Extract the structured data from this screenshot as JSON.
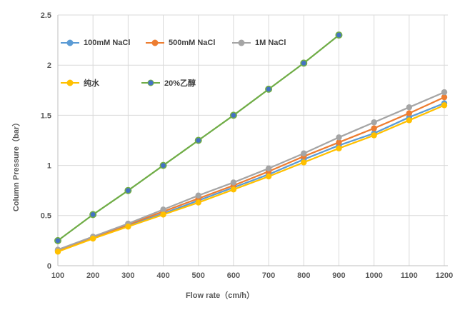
{
  "chart_data": {
    "type": "line",
    "title": "",
    "xlabel": "Flow rate（cm/h）",
    "ylabel": "Column Pressure（bar）",
    "xlim": [
      100,
      1200
    ],
    "ylim": [
      0,
      2.5
    ],
    "x_ticks": [
      100,
      200,
      300,
      400,
      500,
      600,
      700,
      800,
      900,
      1000,
      1100,
      1200
    ],
    "y_ticks": [
      0,
      0.5,
      1,
      1.5,
      2,
      2.5
    ],
    "y_tick_labels": [
      "0",
      "0.5",
      "1",
      "1.5",
      "2",
      "2.5"
    ],
    "grid": true,
    "legend_position": "inside-top-left",
    "x": [
      100,
      200,
      300,
      400,
      500,
      600,
      700,
      800,
      900,
      1000,
      1100,
      1200
    ],
    "series": [
      {
        "name": "100mM NaCl",
        "color": "#5B9BD5",
        "values": [
          0.15,
          0.28,
          0.4,
          0.52,
          0.65,
          0.78,
          0.91,
          1.06,
          1.2,
          1.32,
          1.48,
          1.62
        ]
      },
      {
        "name": "500mM NaCl",
        "color": "#ED7D31",
        "values": [
          0.15,
          0.28,
          0.41,
          0.54,
          0.67,
          0.8,
          0.94,
          1.09,
          1.23,
          1.37,
          1.52,
          1.68
        ]
      },
      {
        "name": "1M NaCl",
        "color": "#A5A5A5",
        "values": [
          0.16,
          0.29,
          0.42,
          0.56,
          0.7,
          0.83,
          0.97,
          1.12,
          1.28,
          1.43,
          1.58,
          1.73
        ]
      },
      {
        "name": "纯水",
        "color": "#FFC000",
        "values": [
          0.14,
          0.27,
          0.39,
          0.51,
          0.63,
          0.76,
          0.89,
          1.03,
          1.17,
          1.3,
          1.45,
          1.6
        ]
      },
      {
        "name": "20%乙醇",
        "color": "#70AD47",
        "marker_fill": "#4472C4",
        "values": [
          0.25,
          0.51,
          0.75,
          1.0,
          1.25,
          1.5,
          1.76,
          2.02,
          2.3
        ]
      }
    ]
  },
  "colors": {
    "background": "#FFFFFF",
    "gridline": "#D9D9D9",
    "axis_line": "#BFBFBF",
    "tick_text": "#595959",
    "axis_title_text": "#595959",
    "legend_text": "#404040"
  }
}
